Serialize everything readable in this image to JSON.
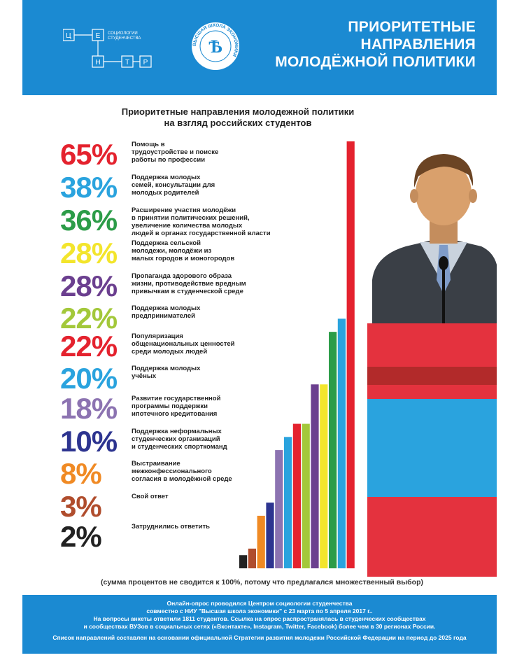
{
  "header": {
    "title_lines": [
      "ПРИОРИТЕТНЫЕ",
      "НАПРАВЛЕНИЯ",
      "МОЛОДЁЖНОЙ ПОЛИТИКИ"
    ],
    "logo_letters": [
      "Ц",
      "Е",
      "Н",
      "Т",
      "Р"
    ],
    "logo_caption_1": "СОЦИОЛОГИИ",
    "logo_caption_2": "СТУДЕНЧЕСТВА",
    "hse_letter": "Ѣ",
    "hse_ring_text": "ВЫСШАЯ ШКОЛА ЭКОНОМИКИ"
  },
  "chart_data": {
    "type": "bar",
    "title": "Приоритетные направления молодежной политики на взгляд российских студентов",
    "title_lines": [
      "Приоритетные направления молодежной политики",
      "на взгляд российских студентов"
    ],
    "unit": "%",
    "ylim": [
      0,
      65
    ],
    "categories": [
      "Помощь в трудоустройстве и поиске работы по профессии",
      "Поддержка молодых семей, консультации для молодых родителей",
      "Расширение участия молодёжи в принятии политических решений, увеличение количества молодых людей в органах государственной власти",
      "Поддержка сельской молодежи, молодёжи из малых городов и моногородов",
      "Пропаганда здорового образа жизни, противодействие вредным привычкам в студенческой среде",
      "Поддержка молодых предпринимателей",
      "Популяризация общенациональных ценностей среди молодых людей",
      "Поддержка молодых учёных",
      "Развитие государственной программы поддержки ипотечного кредитования",
      "Поддержка неформальных студенческих организаций и студенческих спорткоманд",
      "Выстраивание межконфессионального согласия в молодёжной среде",
      "Свой ответ",
      "Затруднились ответить"
    ],
    "labels": [
      "65%",
      "38%",
      "36%",
      "28%",
      "28%",
      "22%",
      "22%",
      "20%",
      "18%",
      "10%",
      "8%",
      "3%",
      "2%"
    ],
    "values": [
      65,
      38,
      36,
      28,
      28,
      22,
      22,
      20,
      18,
      10,
      8,
      3,
      2
    ],
    "desc_lines": [
      [
        "Помощь в",
        "трудоустройстве и поиске",
        "работы по профессии"
      ],
      [
        "Поддержка молодых",
        "семей, консультации для",
        "молодых родителей"
      ],
      [
        "Расширение участия молодёжи",
        "в принятии политических решений,",
        "увеличение количества молодых",
        "людей в органах государственной власти"
      ],
      [
        "Поддержка сельской",
        "молодежи, молодёжи из",
        "малых городов и моногородов"
      ],
      [
        "Пропаганда здорового образа",
        "жизни, противодействие вредным",
        "привычкам в студенческой среде"
      ],
      [
        "Поддержка молодых",
        "предпринимателей"
      ],
      [
        "Популяризация",
        "общенациональных ценностей",
        "среди молодых людей"
      ],
      [
        "Поддержка молодых",
        "учёных"
      ],
      [
        "Развитие государственной",
        "программы поддержки",
        "ипотечного кредитования"
      ],
      [
        "Поддержка неформальных",
        "студенческих организаций",
        "и студенческих спорткоманд"
      ],
      [
        "Выстраивание",
        "межконфессионального",
        "согласия в молодёжной среде"
      ],
      [
        "Свой ответ"
      ],
      [
        "Затруднились ответить"
      ]
    ],
    "colors": [
      "#e4222e",
      "#2aa3de",
      "#2c9c48",
      "#f3e52c",
      "#6b3f8f",
      "#a3c83a",
      "#e4222e",
      "#2aa3de",
      "#8c73b1",
      "#2d3490",
      "#f08a24",
      "#b04d2d",
      "#222222"
    ],
    "bar_colors_ascending": [
      "#222222",
      "#b04d2d",
      "#f08a24",
      "#2d3490",
      "#8c73b1",
      "#2aa3de",
      "#e4222e",
      "#a3c83a",
      "#6b3f8f",
      "#f3e52c",
      "#2c9c48",
      "#2aa3de",
      "#e4222e"
    ],
    "grid": false,
    "legend": "none"
  },
  "note": "(сумма процентов не сводится к 100%, потому что предлагался множественный выбор)",
  "footer": {
    "line1": "Онлайн-опрос проводился Центром социологии студенчества",
    "line2": "совместно с НИУ \"Высшая школа экономики\" с 23 марта по 5 апреля 2017 г..",
    "line3": "На вопросы анкеты ответили 1811 студентов. Ссылка на опрос распространялась в студенческих сообществах",
    "line4": "и сообществах ВУЗов в социальных сетях («Вконтакте», Instagram, Twitter, Facebook) более чем в 30 регионах России.",
    "line5": "Список направлений составлен на основании официальной Стратегии развития молодежи Российской Федерации на период до 2025 года"
  }
}
